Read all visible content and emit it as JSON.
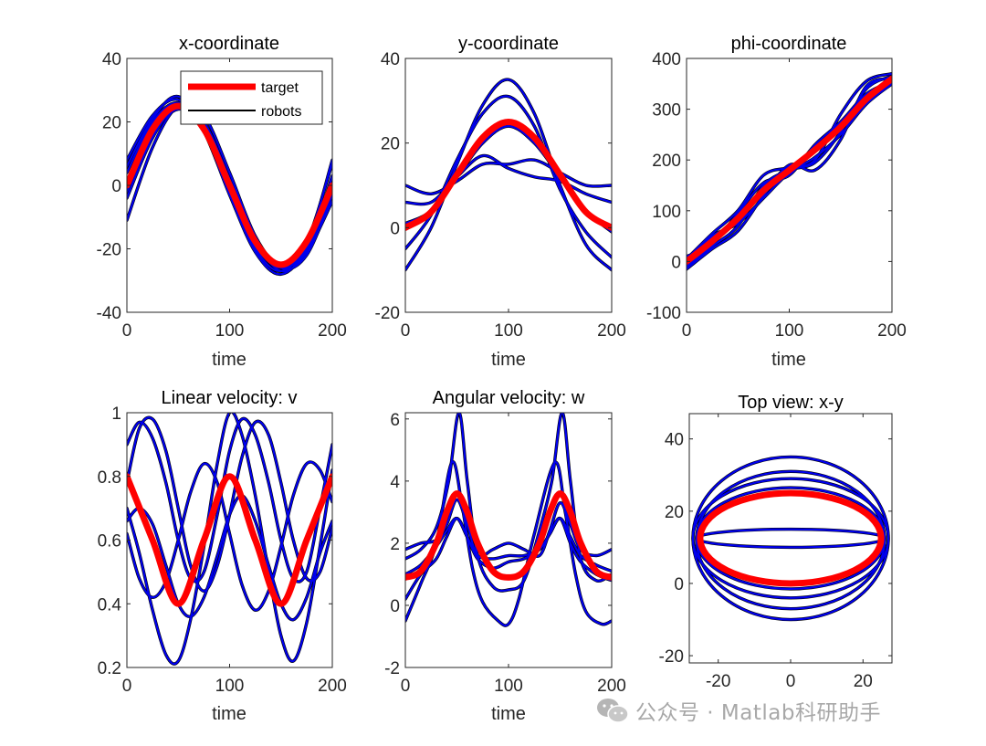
{
  "figure": {
    "background": "#ffffff",
    "target_color": "#ff0000",
    "robot_color": "#0000ee",
    "robot_edge_color": "#000000"
  },
  "watermark": {
    "text": "公众号 · Matlab科研助手",
    "icon": "wechat-icon"
  },
  "chart_data": [
    {
      "id": "x",
      "type": "line",
      "title": "x-coordinate",
      "xlabel": "time",
      "ylabel": "",
      "xlim": [
        0,
        200
      ],
      "ylim": [
        -40,
        40
      ],
      "xticks": [
        0,
        100,
        200
      ],
      "yticks": [
        -40,
        -20,
        0,
        20,
        40
      ],
      "legend": {
        "placement": "top-right",
        "entries": [
          "target",
          "robots"
        ]
      },
      "series": [
        {
          "name": "target",
          "color": "#ff0000",
          "x": [
            0,
            25,
            50,
            75,
            100,
            125,
            150,
            175,
            200
          ],
          "y": [
            0,
            17.7,
            25,
            17.7,
            0,
            -17.7,
            -25,
            -17.7,
            0
          ]
        },
        {
          "color": "#0000ee",
          "x": [
            0,
            25,
            50,
            75,
            100,
            125,
            150,
            175,
            200
          ],
          "y": [
            8,
            22,
            27,
            17,
            -2,
            -20,
            -27,
            -18,
            7
          ]
        },
        {
          "color": "#0000ee",
          "x": [
            0,
            25,
            50,
            75,
            100,
            125,
            150,
            175,
            200
          ],
          "y": [
            -11,
            12,
            25,
            22,
            4,
            -16,
            -26,
            -22,
            -3
          ]
        },
        {
          "color": "#0000ee",
          "x": [
            0,
            25,
            50,
            75,
            100,
            125,
            150,
            175,
            200
          ],
          "y": [
            4,
            20,
            26,
            18,
            -1,
            -19,
            -26,
            -20,
            3
          ]
        },
        {
          "color": "#0000ee",
          "x": [
            0,
            25,
            50,
            75,
            100,
            125,
            150,
            175,
            200
          ],
          "y": [
            -4,
            15,
            25,
            20,
            2,
            -17,
            -27,
            -21,
            -5
          ]
        },
        {
          "color": "#0000ee",
          "x": [
            0,
            25,
            50,
            75,
            100,
            125,
            150,
            175,
            200
          ],
          "y": [
            6,
            21,
            28,
            17,
            -3,
            -21,
            -28,
            -19,
            8
          ]
        },
        {
          "color": "#0000ee",
          "x": [
            0,
            25,
            50,
            75,
            100,
            125,
            150,
            175,
            200
          ],
          "y": [
            -2,
            16,
            24,
            19,
            1,
            -18,
            -25,
            -20,
            -2
          ]
        }
      ]
    },
    {
      "id": "y",
      "type": "line",
      "title": "y-coordinate",
      "xlabel": "time",
      "ylabel": "",
      "xlim": [
        0,
        200
      ],
      "ylim": [
        -20,
        40
      ],
      "xticks": [
        0,
        100,
        200
      ],
      "yticks": [
        -20,
        0,
        20,
        40
      ],
      "series": [
        {
          "name": "target",
          "color": "#ff0000",
          "x": [
            0,
            25,
            50,
            75,
            100,
            125,
            150,
            175,
            200
          ],
          "y": [
            0,
            3.7,
            12.5,
            21.3,
            25,
            21.3,
            12.5,
            3.7,
            0
          ]
        },
        {
          "color": "#0000ee",
          "x": [
            0,
            25,
            50,
            75,
            100,
            125,
            150,
            175,
            200
          ],
          "y": [
            -10,
            0,
            15,
            29,
            35,
            27,
            10,
            -4,
            -10
          ]
        },
        {
          "color": "#0000ee",
          "x": [
            0,
            25,
            50,
            75,
            100,
            125,
            150,
            175,
            200
          ],
          "y": [
            -5,
            3,
            16,
            27,
            31,
            24,
            9,
            -1,
            -7
          ]
        },
        {
          "color": "#0000ee",
          "x": [
            0,
            25,
            50,
            75,
            100,
            125,
            150,
            175,
            200
          ],
          "y": [
            10,
            8,
            11,
            15,
            15,
            16,
            13,
            10,
            10
          ]
        },
        {
          "color": "#0000ee",
          "x": [
            0,
            25,
            50,
            75,
            100,
            125,
            150,
            175,
            200
          ],
          "y": [
            6,
            6,
            12,
            17,
            14,
            12,
            11,
            8,
            6
          ]
        },
        {
          "color": "#0000ee",
          "x": [
            0,
            25,
            50,
            75,
            100,
            125,
            150,
            175,
            200
          ],
          "y": [
            1,
            4,
            12,
            20,
            24,
            20,
            12,
            4,
            -1
          ]
        }
      ]
    },
    {
      "id": "phi",
      "type": "line",
      "title": "phi-coordinate",
      "xlabel": "time",
      "ylabel": "",
      "xlim": [
        0,
        200
      ],
      "ylim": [
        -100,
        400
      ],
      "xticks": [
        0,
        100,
        200
      ],
      "yticks": [
        -100,
        0,
        100,
        200,
        300,
        400
      ],
      "series": [
        {
          "name": "target",
          "color": "#ff0000",
          "x": [
            0,
            25,
            50,
            75,
            100,
            125,
            150,
            175,
            200
          ],
          "y": [
            0,
            40,
            85,
            140,
            180,
            220,
            265,
            320,
            360
          ]
        },
        {
          "color": "#0000ee",
          "x": [
            0,
            25,
            50,
            75,
            100,
            125,
            150,
            175,
            200
          ],
          "y": [
            5,
            55,
            100,
            170,
            185,
            200,
            290,
            355,
            370
          ]
        },
        {
          "color": "#0000ee",
          "x": [
            0,
            25,
            50,
            75,
            100,
            125,
            150,
            175,
            200
          ],
          "y": [
            -10,
            30,
            70,
            150,
            180,
            195,
            255,
            340,
            365
          ]
        },
        {
          "color": "#0000ee",
          "x": [
            0,
            25,
            50,
            75,
            100,
            125,
            150,
            175,
            200
          ],
          "y": [
            -5,
            50,
            75,
            125,
            175,
            205,
            250,
            310,
            350
          ]
        },
        {
          "color": "#0000ee",
          "x": [
            0,
            25,
            50,
            75,
            100,
            125,
            150,
            175,
            200
          ],
          "y": [
            10,
            35,
            95,
            155,
            170,
            230,
            275,
            330,
            355
          ]
        },
        {
          "color": "#0000ee",
          "x": [
            0,
            25,
            50,
            75,
            100,
            125,
            150,
            175,
            200
          ],
          "y": [
            -15,
            25,
            60,
            130,
            190,
            180,
            240,
            345,
            360
          ]
        }
      ]
    },
    {
      "id": "v",
      "type": "line",
      "title": "Linear velocity: v",
      "xlabel": "time",
      "ylabel": "",
      "xlim": [
        0,
        200
      ],
      "ylim": [
        0.2,
        1
      ],
      "xticks": [
        0,
        100,
        200
      ],
      "yticks": [
        0.2,
        0.4,
        0.6,
        0.8,
        1
      ],
      "series": [
        {
          "name": "target",
          "color": "#ff0000",
          "x": [
            0,
            25,
            50,
            75,
            100,
            125,
            150,
            175,
            200
          ],
          "y": [
            0.8,
            0.6,
            0.4,
            0.6,
            0.8,
            0.6,
            0.4,
            0.6,
            0.8
          ]
        },
        {
          "color": "#0000ee",
          "x": [
            0,
            12,
            25,
            38,
            50,
            62,
            75,
            88,
            100,
            112,
            125,
            138,
            150,
            162,
            175,
            188,
            200
          ],
          "y": [
            0.9,
            0.97,
            0.92,
            0.78,
            0.6,
            0.48,
            0.5,
            0.68,
            0.88,
            0.98,
            0.93,
            0.78,
            0.6,
            0.48,
            0.5,
            0.7,
            0.9
          ]
        },
        {
          "color": "#0000ee",
          "x": [
            0,
            12,
            25,
            38,
            50,
            62,
            75,
            88,
            100,
            112,
            125,
            138,
            150,
            162,
            175,
            188,
            200
          ],
          "y": [
            0.7,
            0.56,
            0.38,
            0.24,
            0.22,
            0.35,
            0.58,
            0.84,
            1.0,
            0.93,
            0.74,
            0.5,
            0.3,
            0.22,
            0.34,
            0.58,
            0.82
          ]
        },
        {
          "color": "#0000ee",
          "x": [
            0,
            12,
            25,
            38,
            50,
            62,
            75,
            88,
            100,
            112,
            125,
            138,
            150,
            162,
            175,
            188,
            200
          ],
          "y": [
            0.66,
            0.7,
            0.65,
            0.52,
            0.4,
            0.36,
            0.42,
            0.55,
            0.68,
            0.74,
            0.66,
            0.52,
            0.4,
            0.35,
            0.42,
            0.56,
            0.66
          ]
        },
        {
          "color": "#0000ee",
          "x": [
            0,
            12,
            25,
            38,
            50,
            62,
            75,
            88,
            100,
            112,
            125,
            138,
            150,
            162,
            175,
            188,
            200
          ],
          "y": [
            0.78,
            0.95,
            0.98,
            0.88,
            0.7,
            0.52,
            0.44,
            0.52,
            0.68,
            0.86,
            0.97,
            0.93,
            0.78,
            0.6,
            0.48,
            0.5,
            0.64
          ]
        },
        {
          "color": "#0000ee",
          "x": [
            0,
            12,
            25,
            38,
            50,
            62,
            75,
            88,
            100,
            112,
            125,
            138,
            150,
            162,
            175,
            188,
            200
          ],
          "y": [
            0.62,
            0.48,
            0.42,
            0.47,
            0.6,
            0.75,
            0.84,
            0.78,
            0.62,
            0.46,
            0.38,
            0.44,
            0.58,
            0.74,
            0.84,
            0.82,
            0.72
          ]
        }
      ]
    },
    {
      "id": "w",
      "type": "line",
      "title": "Angular velocity: w",
      "xlabel": "time",
      "ylabel": "",
      "xlim": [
        0,
        200
      ],
      "ylim": [
        -2,
        6.2
      ],
      "xticks": [
        0,
        100,
        200
      ],
      "yticks": [
        -2,
        0,
        2,
        4,
        6
      ],
      "series": [
        {
          "name": "target",
          "color": "#ff0000",
          "x": [
            0,
            15,
            30,
            40,
            50,
            60,
            70,
            85,
            100,
            115,
            130,
            140,
            150,
            160,
            170,
            185,
            200
          ],
          "y": [
            0.9,
            1.1,
            2.0,
            3.0,
            3.6,
            3.0,
            2.0,
            1.1,
            0.9,
            1.1,
            2.0,
            3.0,
            3.6,
            3.0,
            2.0,
            1.1,
            0.9
          ]
        },
        {
          "color": "#0000ee",
          "x": [
            0,
            15,
            30,
            42,
            52,
            60,
            70,
            85,
            100,
            115,
            130,
            142,
            152,
            160,
            170,
            185,
            200
          ],
          "y": [
            1.5,
            1.8,
            2.5,
            4.0,
            6.2,
            4.0,
            1.6,
            0.6,
            0.5,
            0.8,
            2.4,
            4.0,
            6.2,
            4.0,
            1.5,
            0.8,
            1.0
          ]
        },
        {
          "color": "#0000ee",
          "x": [
            0,
            15,
            30,
            45,
            55,
            65,
            75,
            90,
            100,
            110,
            125,
            145,
            155,
            165,
            175,
            190,
            200
          ],
          "y": [
            -0.5,
            0.7,
            2.0,
            4.6,
            3.2,
            1.2,
            0.1,
            -0.5,
            -0.6,
            0.2,
            2.3,
            4.6,
            3.0,
            1.0,
            -0.2,
            -0.6,
            -0.5
          ]
        },
        {
          "color": "#0000ee",
          "x": [
            0,
            15,
            30,
            40,
            50,
            60,
            70,
            85,
            100,
            115,
            130,
            140,
            150,
            160,
            170,
            185,
            200
          ],
          "y": [
            1.8,
            2.0,
            2.1,
            2.6,
            3.4,
            2.6,
            1.6,
            1.8,
            2.0,
            1.8,
            1.6,
            2.4,
            3.3,
            2.6,
            1.8,
            1.6,
            1.8
          ]
        },
        {
          "color": "#0000ee",
          "x": [
            0,
            15,
            30,
            40,
            50,
            60,
            70,
            85,
            100,
            115,
            130,
            140,
            150,
            160,
            170,
            185,
            200
          ],
          "y": [
            1.0,
            1.3,
            1.9,
            2.4,
            2.8,
            2.2,
            1.6,
            1.5,
            1.6,
            1.6,
            1.8,
            2.3,
            2.8,
            2.2,
            1.6,
            1.3,
            1.1
          ]
        },
        {
          "color": "#0000ee",
          "x": [
            0,
            15,
            30,
            40,
            50,
            60,
            70,
            85,
            100,
            115,
            130,
            140,
            150,
            160,
            170,
            185,
            200
          ],
          "y": [
            0.2,
            1.0,
            1.5,
            2.2,
            2.8,
            2.2,
            1.5,
            1.2,
            1.4,
            1.5,
            1.8,
            2.3,
            2.8,
            2.0,
            1.4,
            1.0,
            0.8
          ]
        }
      ]
    },
    {
      "id": "xy",
      "type": "line",
      "title": "Top view: x-y",
      "xlabel": "",
      "ylabel": "",
      "xlim": [
        -28,
        28
      ],
      "ylim": [
        -22,
        47
      ],
      "xticks": [
        -20,
        0,
        20
      ],
      "yticks": [
        -20,
        0,
        20,
        40
      ],
      "ellipses": [
        {
          "name": "target",
          "color": "#ff0000",
          "cx": 0,
          "cy": 12.5,
          "rx": 25,
          "ry": 12.5
        },
        {
          "color": "#0000ee",
          "cx": 0,
          "cy": 12.5,
          "rx": 27,
          "ry": 22.5
        },
        {
          "color": "#0000ee",
          "cx": 0,
          "cy": 12.0,
          "rx": 26,
          "ry": 19.0
        },
        {
          "color": "#0000ee",
          "cx": 0,
          "cy": 12.5,
          "rx": 27,
          "ry": 16.5
        },
        {
          "color": "#0000ee",
          "cx": 0,
          "cy": 12.5,
          "rx": 26,
          "ry": 14.0
        },
        {
          "color": "#0000ee",
          "cx": 0,
          "cy": 12.5,
          "rx": 26,
          "ry": 2.5
        }
      ]
    }
  ]
}
